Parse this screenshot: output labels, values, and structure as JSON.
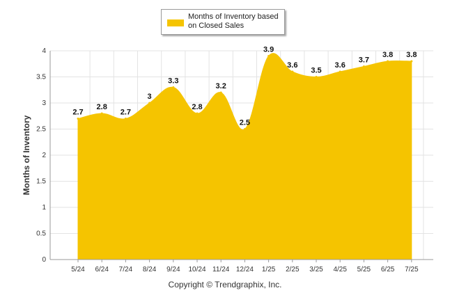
{
  "colors": {
    "series": "#f5c400",
    "grid": "#e3e3e3",
    "axis": "#999999"
  },
  "footer": {
    "copyright": "Copyright © Trendgraphix, Inc."
  },
  "chart_data": {
    "type": "area",
    "categories": [
      "5/24",
      "6/24",
      "7/24",
      "8/24",
      "9/24",
      "10/24",
      "11/24",
      "12/24",
      "1/25",
      "2/25",
      "3/25",
      "4/25",
      "5/25",
      "6/25",
      "7/25"
    ],
    "series": [
      {
        "name": "Months of Inventory based on Closed Sales",
        "values": [
          2.7,
          2.8,
          2.7,
          3,
          3.3,
          2.8,
          3.2,
          2.5,
          3.9,
          3.6,
          3.5,
          3.6,
          3.7,
          3.8,
          3.8
        ]
      }
    ],
    "ylabel": "Months of Inventory",
    "xlabel": "",
    "ylim": [
      0,
      4
    ],
    "yticks": [
      0,
      0.5,
      1,
      1.5,
      2,
      2.5,
      3,
      3.5,
      4
    ],
    "ytick_labels": [
      "0",
      "0.5",
      "1",
      "1.5",
      "2",
      "2.5",
      "3",
      "3.5",
      "4"
    ],
    "grid": true,
    "legend_position": "top-center",
    "data_labels": true
  }
}
